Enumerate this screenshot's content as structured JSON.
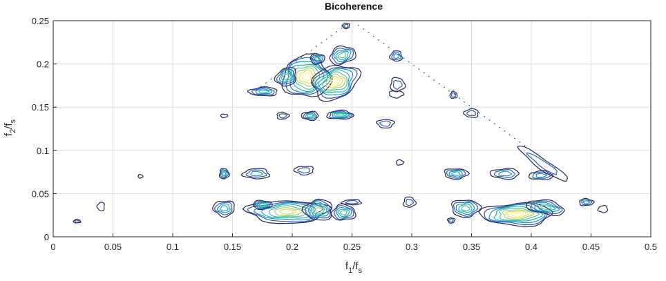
{
  "chart_data": {
    "type": "contour",
    "title": "Bicoherence",
    "xlabel": {
      "base": "f",
      "sub1": "1",
      "mid": "/f",
      "sub2": "s"
    },
    "ylabel": {
      "base": "f",
      "sub1": "2",
      "mid": "/f",
      "sub2": "s"
    },
    "xlim": [
      0,
      0.5
    ],
    "ylim": [
      0,
      0.25
    ],
    "x_ticks": [
      {
        "value": 0,
        "label": "0"
      },
      {
        "value": 0.05,
        "label": "0.05"
      },
      {
        "value": 0.1,
        "label": "0.1"
      },
      {
        "value": 0.15,
        "label": "0.15"
      },
      {
        "value": 0.2,
        "label": "0.2"
      },
      {
        "value": 0.25,
        "label": "0.25"
      },
      {
        "value": 0.3,
        "label": "0.3"
      },
      {
        "value": 0.35,
        "label": "0.35"
      },
      {
        "value": 0.4,
        "label": "0.4"
      },
      {
        "value": 0.45,
        "label": "0.45"
      },
      {
        "value": 0.5,
        "label": "0.5"
      }
    ],
    "y_ticks": [
      {
        "value": 0,
        "label": "0"
      },
      {
        "value": 0.05,
        "label": "0.05"
      },
      {
        "value": 0.1,
        "label": "0.1"
      },
      {
        "value": 0.15,
        "label": "0.15"
      },
      {
        "value": 0.2,
        "label": "0.2"
      },
      {
        "value": 0.25,
        "label": "0.25"
      }
    ],
    "grid": true,
    "level_colors": [
      "#27245e",
      "#2b5fae",
      "#1e8fc9",
      "#1fb5b0",
      "#58c39c",
      "#a8d07a",
      "#e5dc5a",
      "#fff37a"
    ],
    "blobs": [
      {
        "x": 0.212,
        "y": 0.185,
        "w": 0.02,
        "h": 0.024,
        "levels": 8,
        "angle": 0
      },
      {
        "x": 0.236,
        "y": 0.179,
        "w": 0.02,
        "h": 0.019,
        "levels": 8,
        "angle": 20
      },
      {
        "x": 0.195,
        "y": 0.185,
        "w": 0.009,
        "h": 0.01,
        "levels": 5,
        "angle": 30
      },
      {
        "x": 0.176,
        "y": 0.168,
        "w": 0.012,
        "h": 0.005,
        "levels": 4,
        "angle": 0
      },
      {
        "x": 0.242,
        "y": 0.21,
        "w": 0.011,
        "h": 0.01,
        "levels": 5,
        "angle": 15
      },
      {
        "x": 0.221,
        "y": 0.206,
        "w": 0.006,
        "h": 0.006,
        "levels": 4,
        "angle": 0
      },
      {
        "x": 0.245,
        "y": 0.244,
        "w": 0.003,
        "h": 0.003,
        "levels": 2,
        "angle": 0
      },
      {
        "x": 0.287,
        "y": 0.209,
        "w": 0.005,
        "h": 0.006,
        "levels": 3,
        "angle": 0
      },
      {
        "x": 0.288,
        "y": 0.176,
        "w": 0.006,
        "h": 0.008,
        "levels": 2,
        "angle": 0
      },
      {
        "x": 0.287,
        "y": 0.165,
        "w": 0.006,
        "h": 0.004,
        "levels": 1,
        "angle": 0
      },
      {
        "x": 0.215,
        "y": 0.14,
        "w": 0.007,
        "h": 0.005,
        "levels": 4,
        "angle": 0
      },
      {
        "x": 0.24,
        "y": 0.141,
        "w": 0.011,
        "h": 0.005,
        "levels": 5,
        "angle": 0
      },
      {
        "x": 0.192,
        "y": 0.14,
        "w": 0.005,
        "h": 0.004,
        "levels": 2,
        "angle": 0
      },
      {
        "x": 0.278,
        "y": 0.131,
        "w": 0.007,
        "h": 0.005,
        "levels": 2,
        "angle": 0
      },
      {
        "x": 0.35,
        "y": 0.143,
        "w": 0.006,
        "h": 0.005,
        "levels": 2,
        "angle": 0
      },
      {
        "x": 0.335,
        "y": 0.164,
        "w": 0.003,
        "h": 0.004,
        "levels": 2,
        "angle": 0
      },
      {
        "x": 0.143,
        "y": 0.14,
        "w": 0.003,
        "h": 0.002,
        "levels": 1,
        "angle": 0
      },
      {
        "x": 0.21,
        "y": 0.077,
        "w": 0.008,
        "h": 0.005,
        "levels": 2,
        "angle": 0
      },
      {
        "x": 0.17,
        "y": 0.073,
        "w": 0.011,
        "h": 0.006,
        "levels": 3,
        "angle": 0
      },
      {
        "x": 0.143,
        "y": 0.073,
        "w": 0.004,
        "h": 0.006,
        "levels": 4,
        "angle": 0
      },
      {
        "x": 0.337,
        "y": 0.073,
        "w": 0.01,
        "h": 0.006,
        "levels": 4,
        "angle": 0
      },
      {
        "x": 0.378,
        "y": 0.073,
        "w": 0.012,
        "h": 0.006,
        "levels": 3,
        "angle": 0
      },
      {
        "x": 0.408,
        "y": 0.071,
        "w": 0.01,
        "h": 0.005,
        "levels": 3,
        "angle": 0
      },
      {
        "x": 0.29,
        "y": 0.086,
        "w": 0.003,
        "h": 0.003,
        "levels": 1,
        "angle": 0
      },
      {
        "x": 0.196,
        "y": 0.029,
        "w": 0.034,
        "h": 0.013,
        "levels": 7,
        "angle": 0
      },
      {
        "x": 0.222,
        "y": 0.031,
        "w": 0.012,
        "h": 0.012,
        "levels": 6,
        "angle": 0
      },
      {
        "x": 0.243,
        "y": 0.028,
        "w": 0.01,
        "h": 0.009,
        "levels": 5,
        "angle": 0
      },
      {
        "x": 0.175,
        "y": 0.037,
        "w": 0.008,
        "h": 0.005,
        "levels": 5,
        "angle": 0
      },
      {
        "x": 0.143,
        "y": 0.033,
        "w": 0.009,
        "h": 0.009,
        "levels": 4,
        "angle": 0
      },
      {
        "x": 0.25,
        "y": 0.04,
        "w": 0.008,
        "h": 0.003,
        "levels": 2,
        "angle": 0
      },
      {
        "x": 0.298,
        "y": 0.04,
        "w": 0.005,
        "h": 0.006,
        "levels": 2,
        "angle": 0
      },
      {
        "x": 0.345,
        "y": 0.033,
        "w": 0.012,
        "h": 0.01,
        "levels": 5,
        "angle": 0
      },
      {
        "x": 0.388,
        "y": 0.026,
        "w": 0.03,
        "h": 0.013,
        "levels": 8,
        "angle": 0
      },
      {
        "x": 0.412,
        "y": 0.034,
        "w": 0.016,
        "h": 0.008,
        "levels": 5,
        "angle": -10
      },
      {
        "x": 0.446,
        "y": 0.04,
        "w": 0.006,
        "h": 0.004,
        "levels": 3,
        "angle": 0
      },
      {
        "x": 0.333,
        "y": 0.019,
        "w": 0.003,
        "h": 0.003,
        "levels": 2,
        "angle": 0
      },
      {
        "x": 0.04,
        "y": 0.035,
        "w": 0.003,
        "h": 0.005,
        "levels": 1,
        "angle": 0
      },
      {
        "x": 0.02,
        "y": 0.018,
        "w": 0.003,
        "h": 0.002,
        "levels": 2,
        "angle": 0
      },
      {
        "x": 0.073,
        "y": 0.07,
        "w": 0.002,
        "h": 0.002,
        "levels": 1,
        "angle": 0
      },
      {
        "x": 0.41,
        "y": 0.084,
        "w": 0.025,
        "h": 0.006,
        "levels": 2,
        "angle": -35
      },
      {
        "x": 0.46,
        "y": 0.032,
        "w": 0.004,
        "h": 0.004,
        "levels": 1,
        "angle": 0
      }
    ],
    "edge_lines": [
      {
        "x1": 0.165,
        "y1": 0.165,
        "x2": 0.245,
        "y2": 0.245
      },
      {
        "x1": 0.255,
        "y1": 0.245,
        "x2": 0.42,
        "y2": 0.08
      }
    ]
  }
}
